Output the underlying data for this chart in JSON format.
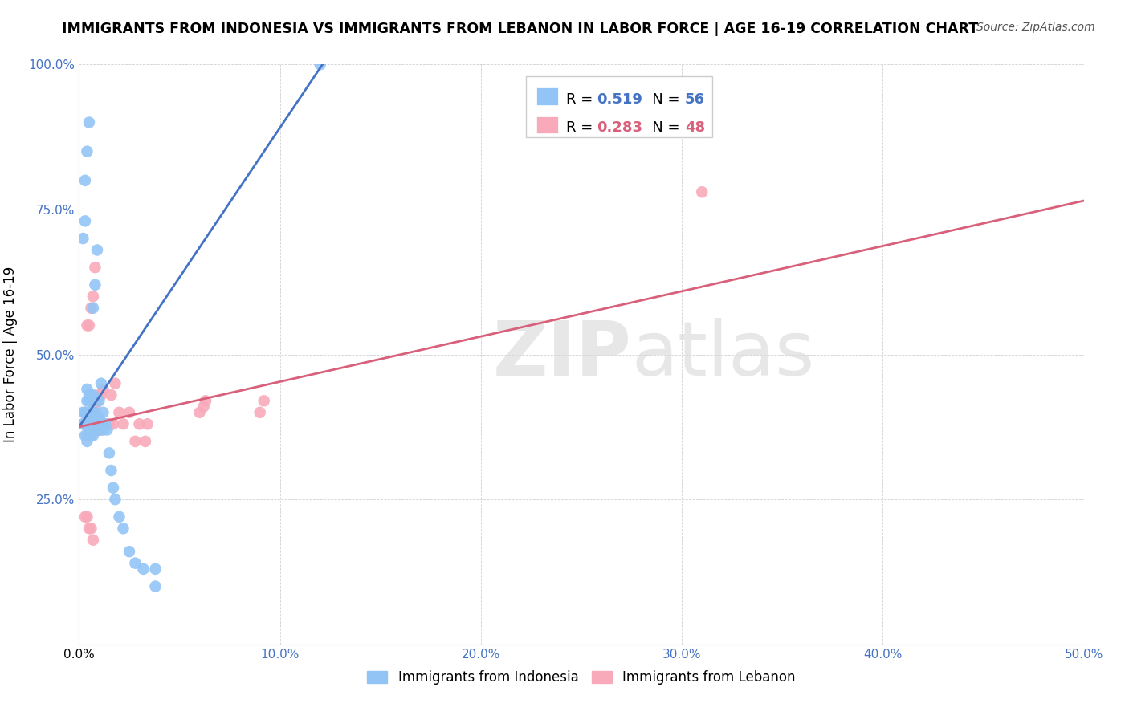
{
  "title": "IMMIGRANTS FROM INDONESIA VS IMMIGRANTS FROM LEBANON IN LABOR FORCE | AGE 16-19 CORRELATION CHART",
  "source": "Source: ZipAtlas.com",
  "xlabel_blue": "Immigrants from Indonesia",
  "xlabel_pink": "Immigrants from Lebanon",
  "ylabel": "In Labor Force | Age 16-19",
  "xlim": [
    0.0,
    0.5
  ],
  "ylim": [
    0.0,
    1.0
  ],
  "xticks": [
    0.0,
    0.1,
    0.2,
    0.3,
    0.4,
    0.5
  ],
  "xticklabels": [
    "0.0%",
    "10.0%",
    "20.0%",
    "30.0%",
    "40.0%",
    "50.0%"
  ],
  "yticks": [
    0.0,
    0.25,
    0.5,
    0.75,
    1.0
  ],
  "yticklabels": [
    "",
    "25.0%",
    "50.0%",
    "75.0%",
    "100.0%"
  ],
  "R_blue": 0.519,
  "N_blue": 56,
  "R_pink": 0.283,
  "N_pink": 48,
  "color_blue": "#92C5F5",
  "color_pink": "#F9AABA",
  "line_blue": "#4472C4",
  "line_pink": "#D9607A",
  "watermark_text": "ZIP",
  "watermark_text2": "atlas",
  "blue_scatter_x": [
    0.002,
    0.002,
    0.003,
    0.003,
    0.003,
    0.004,
    0.004,
    0.004,
    0.004,
    0.005,
    0.005,
    0.005,
    0.005,
    0.005,
    0.005,
    0.006,
    0.006,
    0.006,
    0.006,
    0.007,
    0.007,
    0.007,
    0.007,
    0.007,
    0.008,
    0.008,
    0.008,
    0.009,
    0.009,
    0.009,
    0.01,
    0.01,
    0.01,
    0.011,
    0.011,
    0.012,
    0.012,
    0.013,
    0.014,
    0.015,
    0.016,
    0.017,
    0.018,
    0.02,
    0.022,
    0.025,
    0.028,
    0.032,
    0.038,
    0.038,
    0.002,
    0.003,
    0.003,
    0.004,
    0.005,
    0.12
  ],
  "blue_scatter_y": [
    0.38,
    0.4,
    0.36,
    0.38,
    0.4,
    0.35,
    0.38,
    0.42,
    0.44,
    0.36,
    0.37,
    0.38,
    0.4,
    0.42,
    0.43,
    0.36,
    0.38,
    0.4,
    0.42,
    0.36,
    0.38,
    0.4,
    0.43,
    0.58,
    0.37,
    0.4,
    0.62,
    0.37,
    0.39,
    0.68,
    0.37,
    0.39,
    0.42,
    0.38,
    0.45,
    0.37,
    0.4,
    0.38,
    0.37,
    0.33,
    0.3,
    0.27,
    0.25,
    0.22,
    0.2,
    0.16,
    0.14,
    0.13,
    0.1,
    0.13,
    0.7,
    0.73,
    0.8,
    0.85,
    0.9,
    1.0
  ],
  "pink_scatter_x": [
    0.002,
    0.003,
    0.004,
    0.004,
    0.005,
    0.005,
    0.005,
    0.006,
    0.006,
    0.006,
    0.007,
    0.007,
    0.007,
    0.008,
    0.008,
    0.008,
    0.009,
    0.009,
    0.01,
    0.01,
    0.011,
    0.011,
    0.012,
    0.012,
    0.013,
    0.014,
    0.015,
    0.016,
    0.017,
    0.018,
    0.02,
    0.022,
    0.025,
    0.028,
    0.03,
    0.033,
    0.034,
    0.06,
    0.062,
    0.063,
    0.09,
    0.092,
    0.003,
    0.004,
    0.005,
    0.006,
    0.007,
    0.31
  ],
  "pink_scatter_y": [
    0.38,
    0.4,
    0.36,
    0.55,
    0.37,
    0.4,
    0.55,
    0.36,
    0.4,
    0.58,
    0.37,
    0.4,
    0.6,
    0.37,
    0.41,
    0.65,
    0.37,
    0.42,
    0.37,
    0.43,
    0.37,
    0.43,
    0.38,
    0.44,
    0.38,
    0.38,
    0.38,
    0.43,
    0.38,
    0.45,
    0.4,
    0.38,
    0.4,
    0.35,
    0.38,
    0.35,
    0.38,
    0.4,
    0.41,
    0.42,
    0.4,
    0.42,
    0.22,
    0.22,
    0.2,
    0.2,
    0.18,
    0.78
  ],
  "blue_line_x": [
    0.0,
    0.125
  ],
  "blue_line_y": [
    0.375,
    1.02
  ],
  "pink_line_x": [
    0.0,
    0.5
  ],
  "pink_line_y": [
    0.375,
    0.765
  ]
}
